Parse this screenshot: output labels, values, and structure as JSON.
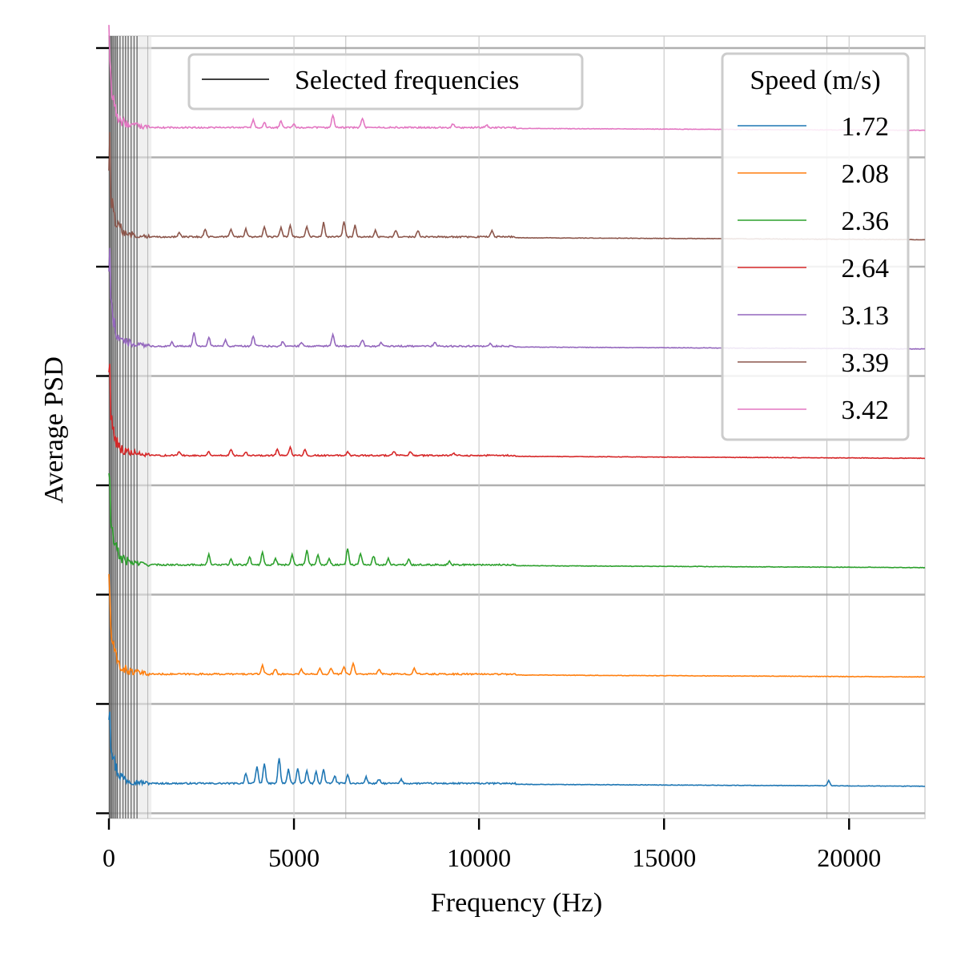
{
  "chart_data": {
    "type": "line",
    "title": "",
    "xlabel": "Frequency (Hz)",
    "ylabel": "Average PSD",
    "xlim": [
      0,
      22050
    ],
    "x_ticks": [
      0,
      5000,
      10000,
      15000,
      20000
    ],
    "x_tick_labels": [
      "0",
      "5000",
      "10000",
      "15000",
      "20000"
    ],
    "y_tick_labels_shown": false,
    "grid": true,
    "selected_frequencies": [
      15,
      40,
      75,
      110,
      150,
      190,
      230,
      300,
      380,
      450,
      520,
      600,
      680,
      760,
      1050,
      6400,
      19400
    ],
    "selected_legend": {
      "label": "Selected frequencies",
      "placement": "top-left"
    },
    "legend": {
      "title": "Speed (m/s)",
      "placement": "top-right"
    },
    "series": [
      {
        "name": "1.72",
        "color": "#1f77b4",
        "baseline": 0,
        "peaks": [
          [
            3700,
            0.8
          ],
          [
            4000,
            1.3
          ],
          [
            4200,
            1.6
          ],
          [
            4600,
            2.0
          ],
          [
            4850,
            1.1
          ],
          [
            5100,
            1.2
          ],
          [
            5350,
            1.0
          ],
          [
            5600,
            0.9
          ],
          [
            5800,
            1.1
          ],
          [
            6100,
            0.6
          ],
          [
            6450,
            0.7
          ],
          [
            6950,
            0.5
          ],
          [
            7300,
            0.3
          ],
          [
            7900,
            0.3
          ],
          [
            19450,
            0.4
          ]
        ]
      },
      {
        "name": "2.08",
        "color": "#ff7f0e",
        "baseline": 1,
        "peaks": [
          [
            4150,
            0.7
          ],
          [
            4500,
            0.4
          ],
          [
            5200,
            0.4
          ],
          [
            5700,
            0.5
          ],
          [
            6000,
            0.5
          ],
          [
            6350,
            0.6
          ],
          [
            6600,
            0.9
          ],
          [
            7300,
            0.4
          ],
          [
            8250,
            0.5
          ]
        ]
      },
      {
        "name": "2.36",
        "color": "#2ca02c",
        "baseline": 2,
        "peaks": [
          [
            2700,
            0.8
          ],
          [
            3300,
            0.4
          ],
          [
            3800,
            0.6
          ],
          [
            4150,
            1.0
          ],
          [
            4500,
            0.5
          ],
          [
            4950,
            0.8
          ],
          [
            5350,
            1.1
          ],
          [
            5650,
            0.8
          ],
          [
            5950,
            0.5
          ],
          [
            6450,
            1.3
          ],
          [
            6800,
            0.9
          ],
          [
            7150,
            0.7
          ],
          [
            7550,
            0.5
          ],
          [
            8100,
            0.4
          ],
          [
            9200,
            0.3
          ]
        ]
      },
      {
        "name": "2.64",
        "color": "#d62728",
        "baseline": 3,
        "peaks": [
          [
            1900,
            0.3
          ],
          [
            2700,
            0.3
          ],
          [
            3300,
            0.5
          ],
          [
            3700,
            0.3
          ],
          [
            4550,
            0.5
          ],
          [
            4900,
            0.6
          ],
          [
            5300,
            0.5
          ],
          [
            6450,
            0.3
          ],
          [
            7700,
            0.3
          ],
          [
            8150,
            0.3
          ],
          [
            9300,
            0.2
          ]
        ]
      },
      {
        "name": "3.13",
        "color": "#9467bd",
        "baseline": 4,
        "peaks": [
          [
            1700,
            0.3
          ],
          [
            2300,
            1.1
          ],
          [
            2700,
            0.7
          ],
          [
            3150,
            0.5
          ],
          [
            3900,
            0.8
          ],
          [
            4700,
            0.4
          ],
          [
            5200,
            0.3
          ],
          [
            6050,
            0.9
          ],
          [
            6850,
            0.5
          ],
          [
            7350,
            0.3
          ],
          [
            8800,
            0.3
          ],
          [
            10300,
            0.2
          ]
        ]
      },
      {
        "name": "3.39",
        "color": "#8c564b",
        "baseline": 5,
        "peaks": [
          [
            1900,
            0.3
          ],
          [
            2600,
            0.6
          ],
          [
            3300,
            0.6
          ],
          [
            3700,
            0.6
          ],
          [
            4200,
            0.8
          ],
          [
            4650,
            0.7
          ],
          [
            4900,
            0.9
          ],
          [
            5350,
            0.8
          ],
          [
            5800,
            1.1
          ],
          [
            6350,
            1.2
          ],
          [
            6650,
            0.9
          ],
          [
            7200,
            0.5
          ],
          [
            7750,
            0.5
          ],
          [
            8350,
            0.5
          ],
          [
            10350,
            0.5
          ]
        ]
      },
      {
        "name": "3.42",
        "color": "#e377c2",
        "baseline": 6,
        "peaks": [
          [
            3900,
            0.6
          ],
          [
            4200,
            0.4
          ],
          [
            4650,
            0.5
          ],
          [
            5000,
            0.3
          ],
          [
            6050,
            1.0
          ],
          [
            6850,
            0.7
          ],
          [
            9300,
            0.3
          ],
          [
            10200,
            0.2
          ]
        ]
      }
    ]
  }
}
